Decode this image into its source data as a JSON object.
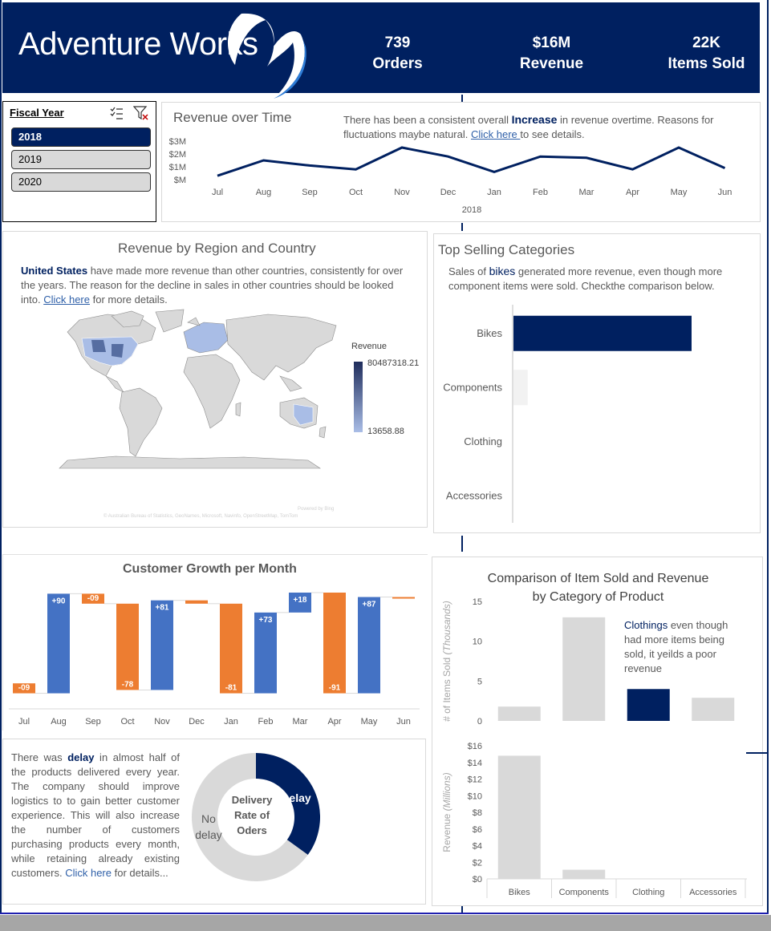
{
  "header": {
    "logo_text": "Adventure Works",
    "kpis": [
      {
        "value": "739",
        "label": "Orders"
      },
      {
        "value": "$16M",
        "label": "Revenue"
      },
      {
        "value": "22K",
        "label": "Items Sold"
      }
    ]
  },
  "slicer": {
    "title": "Fiscal Year",
    "items": [
      {
        "label": "2018",
        "selected": true
      },
      {
        "label": "2019",
        "selected": false
      },
      {
        "label": "2020",
        "selected": false
      }
    ]
  },
  "revenue_time": {
    "title": "Revenue over Time",
    "text_pre": "There has been a consistent overall ",
    "text_hl": "Increase",
    "text_post": " in revenue overtime. Reasons for fluctuations maybe natural. ",
    "link": "Click here ",
    "text_end": "to see details.",
    "chart_data": {
      "type": "line",
      "categories": [
        "Jul",
        "Aug",
        "Sep",
        "Oct",
        "Nov",
        "Dec",
        "Jan",
        "Feb",
        "Mar",
        "Apr",
        "May",
        "Jun"
      ],
      "values": [
        0.3,
        1.5,
        1.1,
        0.8,
        2.5,
        1.8,
        0.6,
        1.8,
        1.7,
        0.8,
        2.5,
        0.9
      ],
      "xlabel": "2018",
      "yticks": [
        "$M",
        "$1M",
        "$2M",
        "$3M"
      ],
      "ylim": [
        0,
        3
      ],
      "color": "#002060"
    }
  },
  "region": {
    "title": "Revenue by Region and Country",
    "text_hl": "United States",
    "text_post": " have made more revenue than other countries, consistently for over the years.  The reason for the decline in sales in other countries should be looked into. ",
    "link": "Click here",
    "text_end": " for more details.",
    "legend_title": "Revenue",
    "legend_max": "80487318.21",
    "legend_min": "13658.88",
    "attribution": "Powered by Bing",
    "copyright": "© Australian Bureau of Statistics, GeoNames, Microsoft, Navinfo, OpenStreetMap, TomTom"
  },
  "top_categories": {
    "title": "Top Selling Categories",
    "text_pre": "Sales of ",
    "text_hl": "bikes",
    "text_post": " generated more revenue, even though more component items were sold. Checkthe comparison below.",
    "chart_data": {
      "type": "bar",
      "orientation": "horizontal",
      "categories": [
        "Bikes",
        "Components",
        "Clothing",
        "Accessories"
      ],
      "values": [
        100,
        8,
        0,
        0
      ],
      "colors": [
        "#002060",
        "#f2f2f2",
        "#f2f2f2",
        "#f2f2f2"
      ]
    }
  },
  "customer_growth": {
    "title": "Customer Growth per Month",
    "chart_data": {
      "type": "waterfall",
      "categories": [
        "Jul",
        "Aug",
        "Sep",
        "Oct",
        "Nov",
        "Dec",
        "Jan",
        "Feb",
        "Mar",
        "Apr",
        "May",
        "Jun"
      ],
      "values": [
        -9,
        90,
        -9,
        -78,
        81,
        -3,
        -81,
        73,
        18,
        -91,
        87,
        -1
      ],
      "labels": [
        "-09",
        "+90",
        "-09",
        "-78",
        "+81",
        "",
        "-81",
        "+73",
        "+18",
        "-91",
        "+87",
        ""
      ],
      "pos_color": "#4472c4",
      "neg_color": "#ed7d31"
    }
  },
  "delivery": {
    "text_pre": "There was ",
    "text_hl": "delay",
    "text_post": " in almost half of the products delivered every year. The company should improve logistics to to gain better customer experience. This will also increase the number of customers purchasing products every month, while retaining already existing customers. ",
    "link": "Click here",
    "text_end": " for details...",
    "center_label": "Delivery Rate of Oders",
    "chart_data": {
      "type": "pie",
      "labels": [
        "Delay",
        "No delay"
      ],
      "values": [
        35,
        65
      ],
      "colors": [
        "#002060",
        "#d9d9d9"
      ]
    }
  },
  "comparison": {
    "title_line1": "Comparison of Item Sold and Revenue",
    "title_line2": "by Category of Product",
    "annotation_hl": "Clothings",
    "annotation_text": " even though had more items being sold, it yeilds a poor revenue",
    "top_chart": {
      "type": "bar",
      "categories": [
        "Bikes",
        "Components",
        "Clothing",
        "Accessories"
      ],
      "values": [
        1.8,
        13,
        4,
        2.9
      ],
      "ylim": [
        0,
        15
      ],
      "yticks": [
        "0",
        "5",
        "10",
        "15"
      ],
      "ylabel_main": "# of Items Sold ",
      "ylabel_unit": "(Thousands)",
      "colors": [
        "#d9d9d9",
        "#d9d9d9",
        "#002060",
        "#d9d9d9"
      ]
    },
    "bottom_chart": {
      "type": "bar",
      "categories": [
        "Bikes",
        "Components",
        "Clothing",
        "Accessories"
      ],
      "values": [
        14.8,
        1.1,
        0,
        0
      ],
      "ylim": [
        0,
        16
      ],
      "yticks": [
        "$0",
        "$2",
        "$4",
        "$6",
        "$8",
        "$10",
        "$12",
        "$14",
        "$16"
      ],
      "ylabel_main": "Revenue ",
      "ylabel_unit": "(Millions)",
      "colors": [
        "#d9d9d9",
        "#d9d9d9",
        "#d9d9d9",
        "#d9d9d9"
      ]
    }
  }
}
